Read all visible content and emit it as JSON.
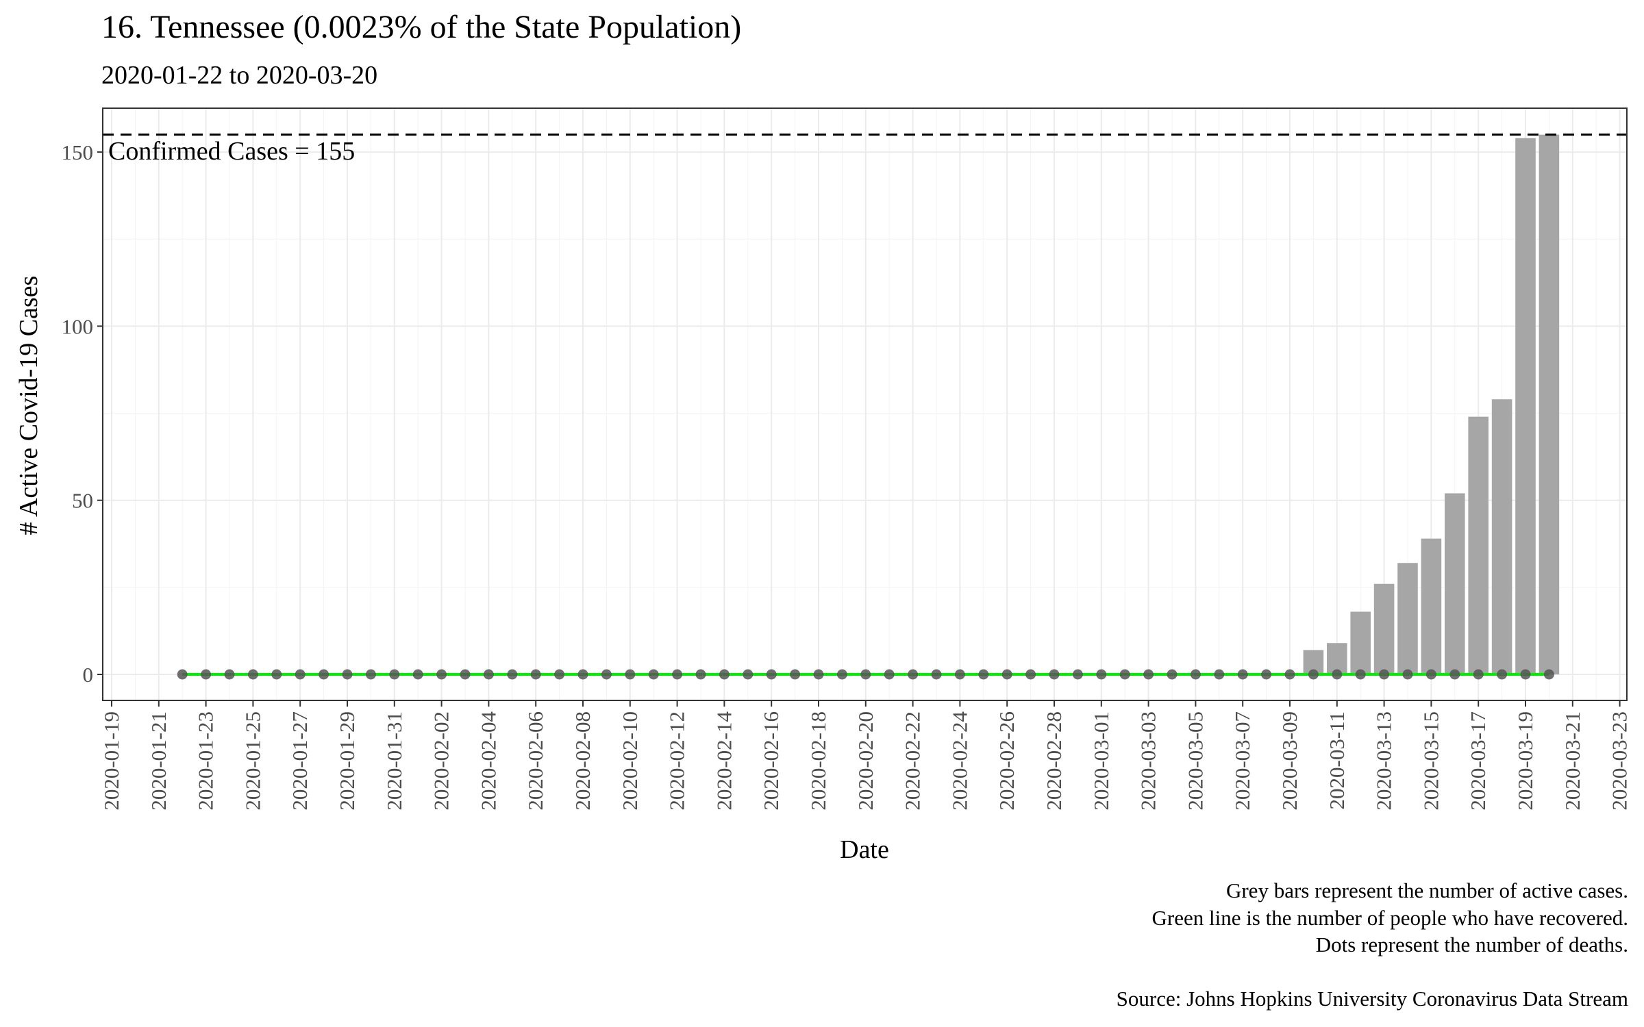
{
  "chart_data": {
    "type": "bar",
    "title": "16. Tennessee (0.0023% of the State Population)",
    "subtitle": "2020-01-22 to 2020-03-20",
    "xlabel": "Date",
    "ylabel": "# Active Covid-19 Cases",
    "xlim": [
      "2020-01-19",
      "2020-03-23"
    ],
    "ylim": [
      0,
      160
    ],
    "x_tick_labels": [
      "2020-01-19",
      "2020-01-21",
      "2020-01-23",
      "2020-01-25",
      "2020-01-27",
      "2020-01-29",
      "2020-01-31",
      "2020-02-02",
      "2020-02-04",
      "2020-02-06",
      "2020-02-08",
      "2020-02-10",
      "2020-02-12",
      "2020-02-14",
      "2020-02-16",
      "2020-02-18",
      "2020-02-20",
      "2020-02-22",
      "2020-02-24",
      "2020-02-26",
      "2020-02-28",
      "2020-03-01",
      "2020-03-03",
      "2020-03-05",
      "2020-03-07",
      "2020-03-09",
      "2020-03-11",
      "2020-03-13",
      "2020-03-15",
      "2020-03-17",
      "2020-03-19",
      "2020-03-21",
      "2020-03-23"
    ],
    "y_ticks": [
      0,
      50,
      100,
      150
    ],
    "grid": true,
    "dates": [
      "2020-01-22",
      "2020-01-23",
      "2020-01-24",
      "2020-01-25",
      "2020-01-26",
      "2020-01-27",
      "2020-01-28",
      "2020-01-29",
      "2020-01-30",
      "2020-01-31",
      "2020-02-01",
      "2020-02-02",
      "2020-02-03",
      "2020-02-04",
      "2020-02-05",
      "2020-02-06",
      "2020-02-07",
      "2020-02-08",
      "2020-02-09",
      "2020-02-10",
      "2020-02-11",
      "2020-02-12",
      "2020-02-13",
      "2020-02-14",
      "2020-02-15",
      "2020-02-16",
      "2020-02-17",
      "2020-02-18",
      "2020-02-19",
      "2020-02-20",
      "2020-02-21",
      "2020-02-22",
      "2020-02-23",
      "2020-02-24",
      "2020-02-25",
      "2020-02-26",
      "2020-02-27",
      "2020-02-28",
      "2020-02-29",
      "2020-03-01",
      "2020-03-02",
      "2020-03-03",
      "2020-03-04",
      "2020-03-05",
      "2020-03-06",
      "2020-03-07",
      "2020-03-08",
      "2020-03-09",
      "2020-03-10",
      "2020-03-11",
      "2020-03-12",
      "2020-03-13",
      "2020-03-14",
      "2020-03-15",
      "2020-03-16",
      "2020-03-17",
      "2020-03-18",
      "2020-03-19",
      "2020-03-20"
    ],
    "series": [
      {
        "values": [
          0,
          0,
          0,
          0,
          0,
          0,
          0,
          0,
          0,
          0,
          0,
          0,
          0,
          0,
          0,
          0,
          0,
          0,
          0,
          0,
          0,
          0,
          0,
          0,
          0,
          0,
          0,
          0,
          0,
          0,
          0,
          0,
          0,
          0,
          0,
          0,
          0,
          0,
          0,
          0,
          0,
          0,
          0,
          0,
          0,
          0,
          0,
          0,
          7,
          9,
          18,
          26,
          32,
          39,
          52,
          74,
          79,
          154,
          155
        ],
        "color": "#a6a6a6",
        "mark": "bar"
      },
      {
        "values": [
          0,
          0,
          0,
          0,
          0,
          0,
          0,
          0,
          0,
          0,
          0,
          0,
          0,
          0,
          0,
          0,
          0,
          0,
          0,
          0,
          0,
          0,
          0,
          0,
          0,
          0,
          0,
          0,
          0,
          0,
          0,
          0,
          0,
          0,
          0,
          0,
          0,
          0,
          0,
          0,
          0,
          0,
          0,
          0,
          0,
          0,
          0,
          0,
          0,
          0,
          0,
          0,
          0,
          0,
          0,
          0,
          0,
          0,
          0
        ],
        "color": "#00ee00",
        "mark": "line"
      },
      {
        "values": [
          0,
          0,
          0,
          0,
          0,
          0,
          0,
          0,
          0,
          0,
          0,
          0,
          0,
          0,
          0,
          0,
          0,
          0,
          0,
          0,
          0,
          0,
          0,
          0,
          0,
          0,
          0,
          0,
          0,
          0,
          0,
          0,
          0,
          0,
          0,
          0,
          0,
          0,
          0,
          0,
          0,
          0,
          0,
          0,
          0,
          0,
          0,
          0,
          0,
          0,
          0,
          0,
          0,
          0,
          0,
          0,
          0,
          0,
          0
        ],
        "color": "#555555",
        "mark": "point"
      }
    ],
    "reference_line": {
      "value": 155,
      "label": "Confirmed Cases = 155",
      "style": "dashed"
    },
    "caption": [
      "Grey bars represent the number of active cases.",
      "Green line is the number of people who have recovered.",
      "Dots represent the number of deaths."
    ],
    "source": "Source: Johns Hopkins University Coronavirus Data Stream"
  }
}
